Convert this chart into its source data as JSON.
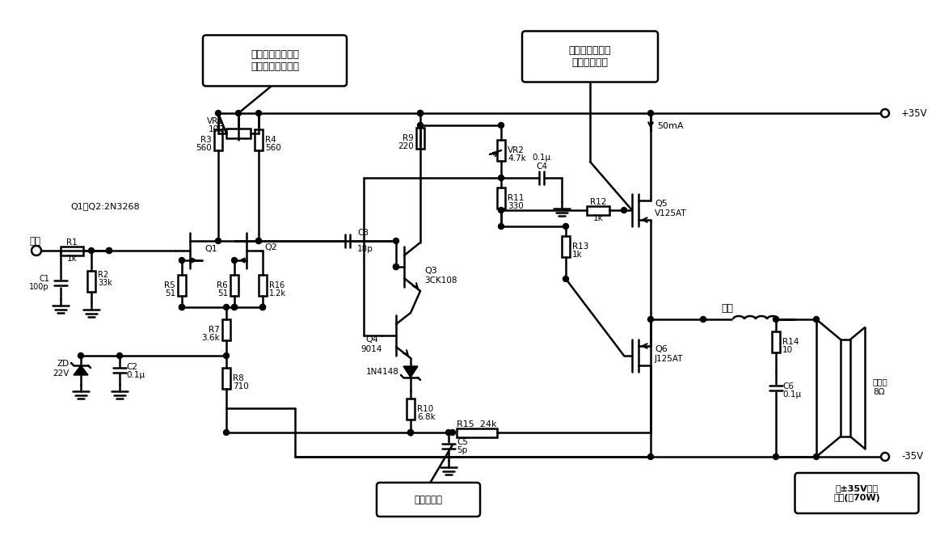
{
  "bg_color": "#ffffff",
  "line_color": "#000000",
  "lw": 1.8,
  "callout1": "输入放大器采用场\n效应管差分放大器",
  "callout2": "输出级采用互补\n对称场效应管",
  "callout3": "负反馈电路",
  "callout4": "由±35V电源\n供电(约70W)",
  "label_input": "输入",
  "label_output": "输出",
  "label_q1q2": "Q1、Q2:2N3268",
  "label_plus35": "+35V",
  "label_minus35": "-35V",
  "label_50mA": "50mA",
  "label_speaker": "扬声器",
  "label_8ohm": "8Ω"
}
